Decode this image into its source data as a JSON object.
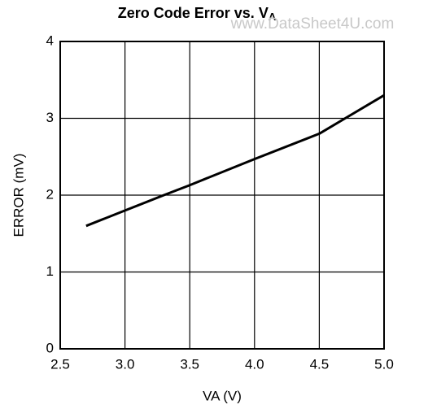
{
  "chart_data": {
    "type": "line",
    "title": "Zero Code Error vs. V",
    "title_subscript": "A",
    "watermark": "www.DataSheet4U.com",
    "x_label": "VA (V)",
    "y_label": "ERROR (mV)",
    "x": [
      2.7,
      3.0,
      3.3,
      3.5,
      4.0,
      4.5,
      4.7,
      5.0
    ],
    "values": [
      1.6,
      1.8,
      2.0,
      2.13,
      2.47,
      2.8,
      3.0,
      3.3
    ],
    "color": "#000000",
    "xlim": [
      2.5,
      5.0
    ],
    "xticks": [
      2.5,
      {
        "value": 3.0,
        "label": "3.0"
      },
      3.5,
      {
        "value": 4.0,
        "label": "4.0"
      },
      4.5,
      {
        "value": 5.0,
        "label": "5.0"
      }
    ],
    "ylim": [
      0,
      4
    ],
    "yticks": [
      0,
      1,
      2,
      3,
      4
    ],
    "grid": true
  }
}
